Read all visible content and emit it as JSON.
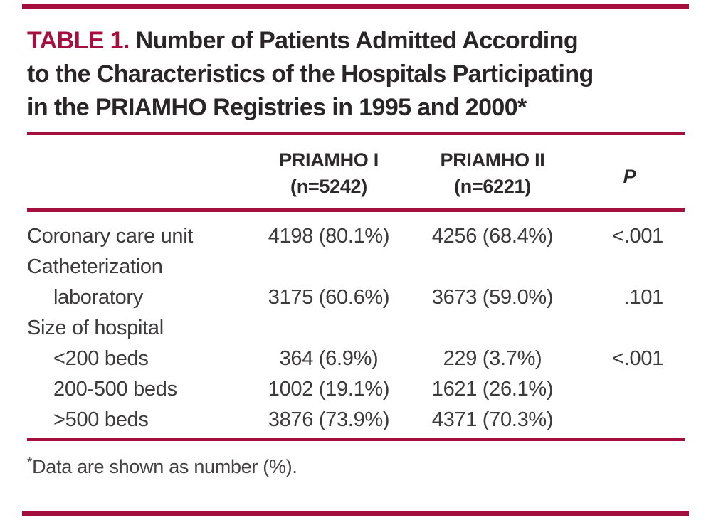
{
  "accent_color": "#A50F3D",
  "title": {
    "label": "TABLE 1.",
    "line1": " Number of Patients Admitted According",
    "line2": "to the Characteristics of the Hospitals Participating",
    "line3": "in the PRIAMHO Registries in 1995 and 2000*"
  },
  "table": {
    "header": {
      "characteristic": "",
      "col1_line1": "PRIAMHO I",
      "col1_line2": "(n=5242)",
      "col2_line1": "PRIAMHO II",
      "col2_line2": "(n=6221)",
      "p": "P"
    },
    "rows": [
      {
        "label": "Coronary care unit",
        "priamho1": "4198 (80.1%)",
        "priamho2": "4256 (68.4%)",
        "p": "<.001"
      },
      {
        "label": "Catheterization",
        "priamho1": "",
        "priamho2": "",
        "p": ""
      },
      {
        "label": "laboratory",
        "priamho1": "3175 (60.6%)",
        "priamho2": "3673 (59.0%)",
        "p": ".101"
      },
      {
        "label": "Size of hospital",
        "priamho1": "",
        "priamho2": "",
        "p": ""
      },
      {
        "label": "<200 beds",
        "priamho1": "364 (6.9%)",
        "priamho2": "229 (3.7%)",
        "p": "<.001"
      },
      {
        "label": "200-500 beds",
        "priamho1": "1002 (19.1%)",
        "priamho2": "1621 (26.1%)",
        "p": ""
      },
      {
        "label": ">500 beds",
        "priamho1": "3876 (73.9%)",
        "priamho2": "4371 (70.3%)",
        "p": ""
      }
    ]
  },
  "footnote": {
    "marker": "*",
    "text": "Data are shown as number (%)."
  }
}
